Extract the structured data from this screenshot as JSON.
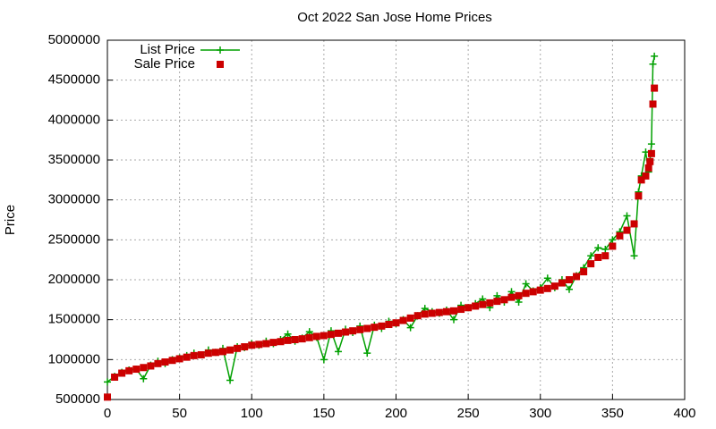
{
  "chart_data": {
    "type": "line",
    "title": "Oct 2022 San Jose Home Prices",
    "y_label": "Price",
    "x": [
      0,
      5,
      10,
      15,
      20,
      25,
      30,
      35,
      40,
      45,
      50,
      55,
      60,
      65,
      70,
      75,
      80,
      85,
      90,
      95,
      100,
      105,
      110,
      115,
      120,
      125,
      130,
      135,
      140,
      145,
      150,
      155,
      160,
      165,
      170,
      175,
      180,
      185,
      190,
      195,
      200,
      205,
      210,
      215,
      220,
      225,
      230,
      235,
      240,
      245,
      250,
      255,
      260,
      265,
      270,
      275,
      280,
      285,
      290,
      295,
      300,
      305,
      310,
      315,
      320,
      325,
      330,
      335,
      340,
      345,
      350,
      355,
      360,
      365,
      368,
      370,
      373,
      375,
      376,
      377,
      378,
      379
    ],
    "series": [
      {
        "name": "List Price",
        "color": "#00a000",
        "style": "linespoints",
        "values": [
          720000,
          790000,
          840000,
          870000,
          880000,
          760000,
          930000,
          980000,
          950000,
          1000000,
          1020000,
          1050000,
          1080000,
          1060000,
          1120000,
          1090000,
          1140000,
          740000,
          1160000,
          1150000,
          1200000,
          1180000,
          1230000,
          1200000,
          1250000,
          1320000,
          1230000,
          1270000,
          1350000,
          1280000,
          1000000,
          1360000,
          1100000,
          1380000,
          1340000,
          1420000,
          1080000,
          1430000,
          1390000,
          1480000,
          1450000,
          1500000,
          1400000,
          1550000,
          1640000,
          1600000,
          1580000,
          1620000,
          1500000,
          1680000,
          1650000,
          1700000,
          1760000,
          1650000,
          1800000,
          1720000,
          1850000,
          1720000,
          1950000,
          1860000,
          1900000,
          2020000,
          1900000,
          2000000,
          1880000,
          2050000,
          2150000,
          2300000,
          2400000,
          2380000,
          2500000,
          2600000,
          2800000,
          2300000,
          3100000,
          3300000,
          3600000,
          3350000,
          3500000,
          3700000,
          4700000,
          4800000
        ]
      },
      {
        "name": "Sale Price",
        "color": "#cc0000",
        "style": "points",
        "values": [
          530000,
          780000,
          830000,
          860000,
          880000,
          900000,
          920000,
          950000,
          970000,
          990000,
          1010000,
          1030000,
          1050000,
          1060000,
          1080000,
          1090000,
          1100000,
          1120000,
          1140000,
          1160000,
          1180000,
          1190000,
          1200000,
          1215000,
          1225000,
          1240000,
          1250000,
          1260000,
          1275000,
          1290000,
          1300000,
          1315000,
          1330000,
          1345000,
          1360000,
          1375000,
          1390000,
          1405000,
          1420000,
          1440000,
          1460000,
          1490000,
          1520000,
          1550000,
          1570000,
          1580000,
          1590000,
          1600000,
          1610000,
          1630000,
          1650000,
          1670000,
          1690000,
          1710000,
          1730000,
          1750000,
          1780000,
          1800000,
          1830000,
          1850000,
          1870000,
          1890000,
          1920000,
          1960000,
          2000000,
          2040000,
          2100000,
          2200000,
          2280000,
          2300000,
          2420000,
          2550000,
          2620000,
          2700000,
          3050000,
          3250000,
          3300000,
          3400000,
          3480000,
          3580000,
          4200000,
          4400000
        ]
      }
    ],
    "xlim": [
      0,
      400
    ],
    "xticks": [
      0,
      50,
      100,
      150,
      200,
      250,
      300,
      350,
      400
    ],
    "ylim": [
      500000,
      5000000
    ],
    "yticks": [
      500000,
      1000000,
      1500000,
      2000000,
      2500000,
      3000000,
      3500000,
      4000000,
      4500000,
      5000000
    ],
    "grid": true,
    "legend": "top-left"
  }
}
